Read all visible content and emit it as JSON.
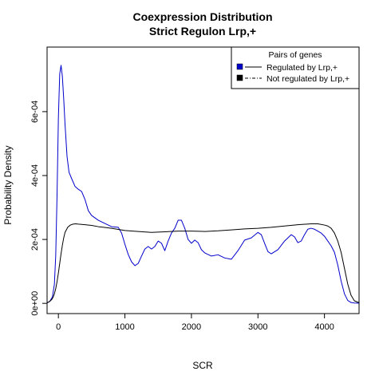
{
  "chart_data": {
    "type": "line",
    "title": "Coexpression Distribution",
    "subtitle": "Strict Regulon Lrp,+",
    "xlabel": "SCR",
    "ylabel": "Probability Density",
    "xlim": [
      -170,
      4520
    ],
    "ylim": [
      -3.2e-05,
      0.000802
    ],
    "x_ticks": [
      0,
      1000,
      2000,
      3000,
      4000
    ],
    "x_tick_labels": [
      "0",
      "1000",
      "2000",
      "3000",
      "4000"
    ],
    "y_ticks": [
      0,
      0.0002,
      0.0004,
      0.0006
    ],
    "y_tick_labels": [
      "0e+00",
      "2e-04",
      "4e-04",
      "6e-04"
    ],
    "grid": false,
    "legend": {
      "title": "Pairs of genes",
      "position": "top-right",
      "entries": [
        {
          "label": "Regulated by  Lrp,+",
          "color": "#0000cc"
        },
        {
          "label": "Not regulated by  Lrp,+",
          "color": "#000000"
        }
      ]
    },
    "series": [
      {
        "label_ref": 0,
        "color": "#0000cc",
        "x": [
          -170,
          -130,
          -90,
          -60,
          -40,
          -20,
          0,
          20,
          40,
          60,
          80,
          100,
          130,
          160,
          200,
          250,
          300,
          350,
          400,
          450,
          500,
          600,
          700,
          800,
          900,
          950,
          1000,
          1050,
          1100,
          1150,
          1200,
          1250,
          1300,
          1350,
          1400,
          1450,
          1500,
          1550,
          1600,
          1650,
          1700,
          1750,
          1800,
          1850,
          1900,
          1950,
          2000,
          2050,
          2100,
          2150,
          2200,
          2300,
          2400,
          2500,
          2600,
          2700,
          2800,
          2900,
          3000,
          3050,
          3100,
          3150,
          3200,
          3300,
          3400,
          3500,
          3550,
          3600,
          3650,
          3700,
          3750,
          3800,
          3850,
          3900,
          3950,
          4000,
          4050,
          4100,
          4150,
          4200,
          4250,
          4300,
          4350,
          4400,
          4450,
          4520
        ],
        "y": [
          1.5e-06,
          6e-06,
          2e-05,
          6e-05,
          0.00015,
          0.00034,
          0.00058,
          0.000718,
          0.000745,
          0.00071,
          0.00064,
          0.00056,
          0.00046,
          0.00041,
          0.00039,
          0.000366,
          0.000357,
          0.00035,
          0.000325,
          0.00029,
          0.000275,
          0.00026,
          0.00025,
          0.00024,
          0.000238,
          0.00022,
          0.000185,
          0.000153,
          0.00013,
          0.000118,
          0.000125,
          0.000148,
          0.00017,
          0.000178,
          0.00017,
          0.000178,
          0.000195,
          0.000188,
          0.000165,
          0.000195,
          0.00022,
          0.000235,
          0.00026,
          0.00026,
          0.000235,
          0.0002,
          0.000188,
          0.000198,
          0.00019,
          0.000168,
          0.000158,
          0.000148,
          0.000152,
          0.000142,
          0.000138,
          0.000165,
          0.000198,
          0.000205,
          0.000222,
          0.000215,
          0.000188,
          0.000162,
          0.000155,
          0.000168,
          0.000195,
          0.000215,
          0.000208,
          0.00019,
          0.000195,
          0.000215,
          0.000232,
          0.000235,
          0.000232,
          0.000226,
          0.00022,
          0.00021,
          0.000195,
          0.00018,
          0.00016,
          0.00012,
          7e-05,
          3e-05,
          9e-06,
          2.5e-06,
          1e-06,
          5e-07
        ]
      },
      {
        "label_ref": 1,
        "color": "#000000",
        "x": [
          -170,
          -130,
          -100,
          -80,
          -60,
          -40,
          -20,
          0,
          20,
          40,
          60,
          80,
          100,
          140,
          180,
          220,
          260,
          300,
          400,
          500,
          600,
          800,
          1000,
          1200,
          1400,
          1600,
          1800,
          2000,
          2200,
          2400,
          2600,
          2800,
          3000,
          3200,
          3400,
          3600,
          3800,
          3900,
          4000,
          4050,
          4100,
          4150,
          4200,
          4250,
          4300,
          4350,
          4400,
          4450,
          4520
        ],
        "y": [
          2e-06,
          6e-06,
          1.2e-05,
          1.9e-05,
          3e-05,
          4.6e-05,
          6.8e-05,
          9.5e-05,
          0.000125,
          0.000155,
          0.000182,
          0.000205,
          0.000222,
          0.000238,
          0.000245,
          0.000248,
          0.000249,
          0.000248,
          0.000246,
          0.000244,
          0.00024,
          0.000235,
          0.000228,
          0.000225,
          0.000222,
          0.000224,
          0.000226,
          0.000226,
          0.000225,
          0.000227,
          0.00023,
          0.000233,
          0.000235,
          0.000238,
          0.000242,
          0.000246,
          0.000249,
          0.000249,
          0.000245,
          0.000242,
          0.000235,
          0.00022,
          0.000195,
          0.00016,
          0.00011,
          6e-05,
          2.5e-05,
          8e-06,
          2e-06
        ]
      }
    ]
  }
}
